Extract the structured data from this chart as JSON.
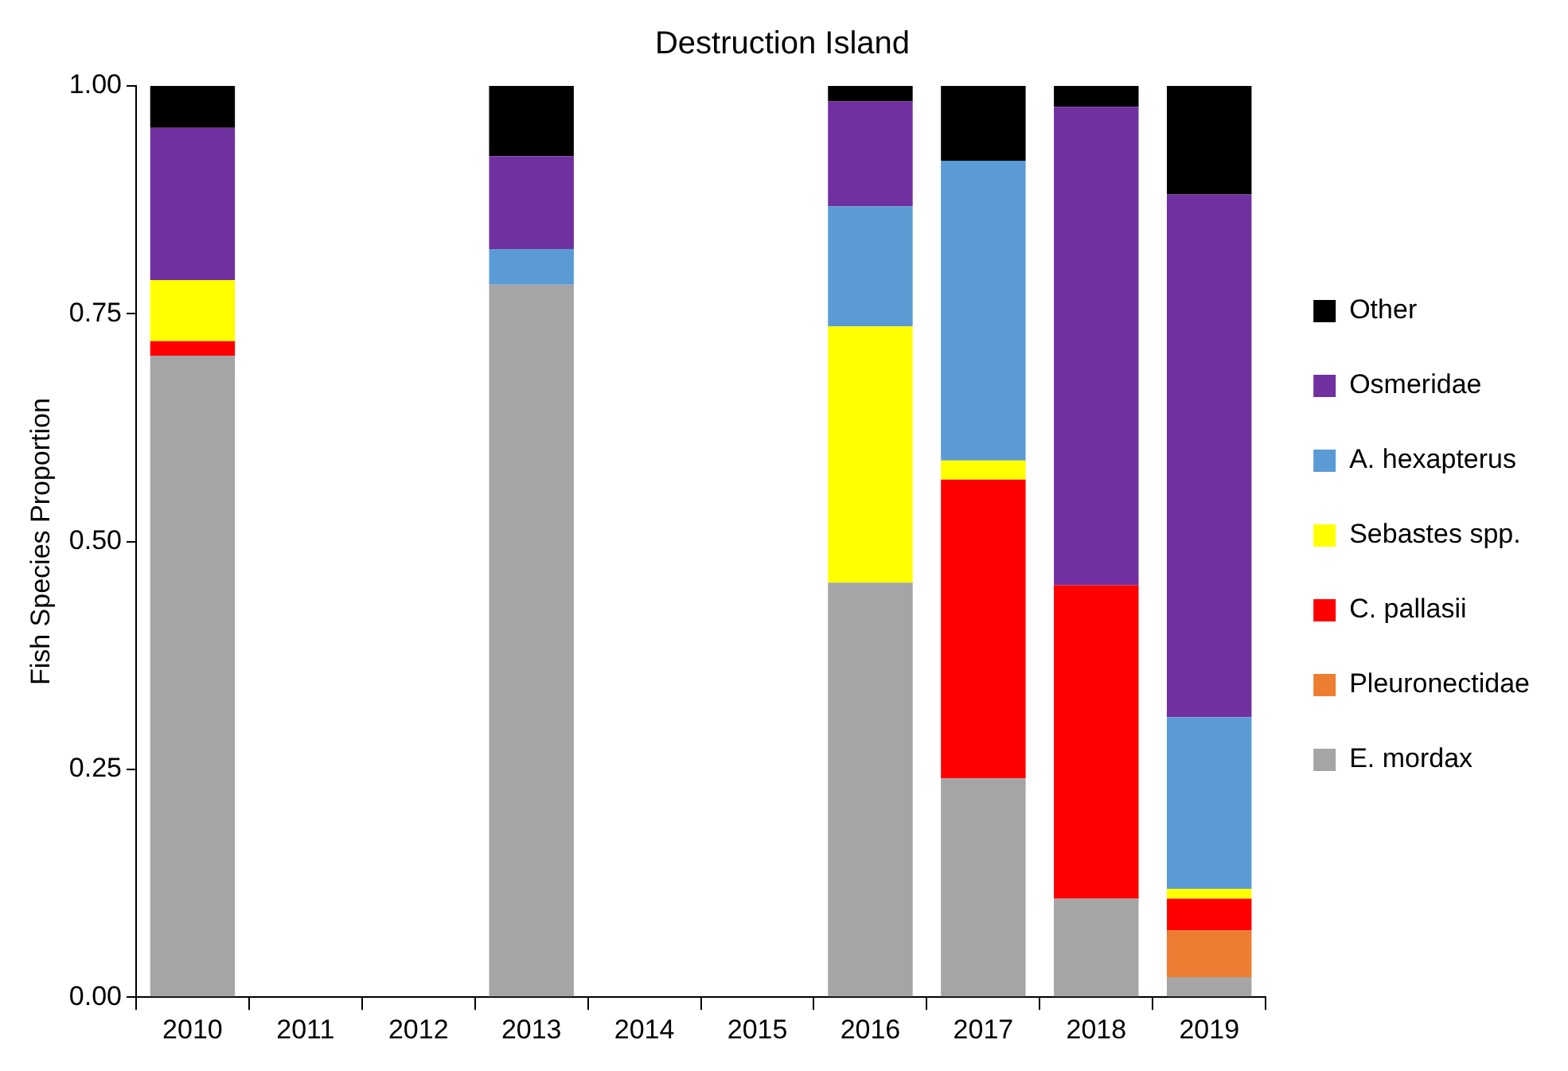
{
  "chart_data": {
    "type": "bar",
    "title": "Destruction Island",
    "ylabel": "Fish Species Proportion",
    "stacked": true,
    "grid": false,
    "legend": "right",
    "categories": [
      "2010",
      "2011",
      "2012",
      "2013",
      "2014",
      "2015",
      "2016",
      "2017",
      "2018",
      "2019"
    ],
    "ylim": [
      0,
      1
    ],
    "yticks": [
      {
        "value": 0,
        "label": "0.00"
      },
      {
        "value": 0.25,
        "label": "0.25"
      },
      {
        "value": 0.5,
        "label": "0.50"
      },
      {
        "value": 0.75,
        "label": "0.75"
      },
      {
        "value": 1,
        "label": "1.00"
      }
    ],
    "series": [
      {
        "name": "E. mordax",
        "color": "#a5a5a5",
        "values": [
          0.704,
          null,
          null,
          0.782,
          null,
          null,
          0.455,
          0.24,
          0.108,
          0.022
        ]
      },
      {
        "name": "Pleuronectidae",
        "color": "#ed7d31",
        "values": [
          null,
          null,
          null,
          null,
          null,
          null,
          null,
          null,
          null,
          0.051
        ]
      },
      {
        "name": "C. pallasii",
        "color": "#ff0000",
        "values": [
          0.016,
          null,
          null,
          null,
          null,
          null,
          null,
          0.328,
          0.344,
          0.035
        ]
      },
      {
        "name": "Sebastes spp.",
        "color": "#ffff00",
        "values": [
          0.067,
          null,
          null,
          null,
          null,
          null,
          0.281,
          0.021,
          null,
          0.011
        ]
      },
      {
        "name": "A. hexapterus",
        "color": "#5b9bd5",
        "values": [
          null,
          null,
          null,
          0.039,
          null,
          null,
          0.132,
          0.329,
          null,
          0.188
        ]
      },
      {
        "name": "Osmeridae",
        "color": "#7030a0",
        "values": [
          0.167,
          null,
          null,
          0.102,
          null,
          null,
          0.115,
          null,
          0.525,
          0.574
        ]
      },
      {
        "name": "Other",
        "color": "#000000",
        "values": [
          0.046,
          null,
          null,
          0.077,
          null,
          null,
          0.017,
          0.082,
          0.023,
          0.119
        ]
      }
    ]
  }
}
